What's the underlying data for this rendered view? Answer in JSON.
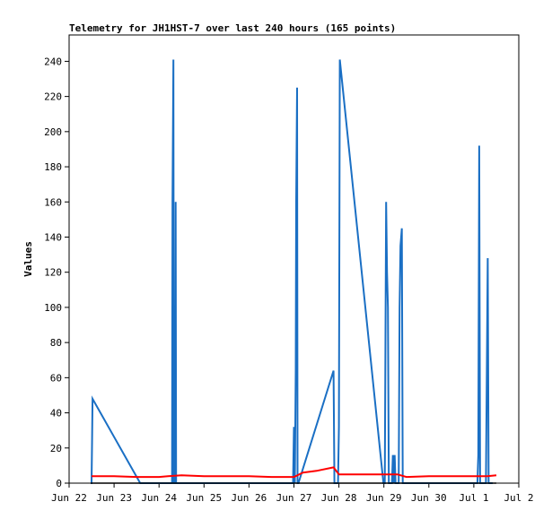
{
  "chart_data": {
    "type": "line",
    "title": "Telemetry for JH1HST-7 over last 240 hours (165 points)",
    "xlabel": "",
    "ylabel": "Values",
    "x_ticks": [
      "Jun 22",
      "Jun 23",
      "Jun 24",
      "Jun 25",
      "Jun 26",
      "Jun 27",
      "Jun 28",
      "Jun 29",
      "Jun 30",
      "Jul 1",
      "Jul 2"
    ],
    "xlim": [
      0,
      10
    ],
    "ylim": [
      0,
      255
    ],
    "y_ticks": [
      0,
      20,
      40,
      60,
      80,
      100,
      120,
      140,
      160,
      180,
      200,
      220,
      240
    ],
    "grid": false,
    "series": [
      {
        "color": "#1a6fc4",
        "points": [
          [
            0.48,
            0
          ],
          [
            0.5,
            0
          ],
          [
            0.51,
            25
          ],
          [
            0.52,
            48
          ],
          [
            1.58,
            0
          ],
          [
            2.29,
            0
          ],
          [
            2.3,
            160
          ],
          [
            2.32,
            241
          ],
          [
            2.33,
            0
          ],
          [
            2.36,
            0
          ],
          [
            2.37,
            160
          ],
          [
            2.38,
            0
          ],
          [
            4.98,
            0
          ],
          [
            5.0,
            32
          ],
          [
            5.02,
            0
          ],
          [
            5.04,
            64
          ],
          [
            5.05,
            160
          ],
          [
            5.07,
            225
          ],
          [
            5.08,
            0
          ],
          [
            5.1,
            0
          ],
          [
            5.88,
            64
          ],
          [
            5.9,
            0
          ],
          [
            5.98,
            0
          ],
          [
            6.0,
            32
          ],
          [
            6.02,
            241
          ],
          [
            6.99,
            0
          ],
          [
            7.02,
            0
          ],
          [
            7.05,
            160
          ],
          [
            7.07,
            120
          ],
          [
            7.09,
            100
          ],
          [
            7.11,
            0
          ],
          [
            7.18,
            0
          ],
          [
            7.2,
            16
          ],
          [
            7.22,
            0
          ],
          [
            7.24,
            16
          ],
          [
            7.26,
            0
          ],
          [
            7.33,
            0
          ],
          [
            7.35,
            100
          ],
          [
            7.37,
            135
          ],
          [
            7.4,
            145
          ],
          [
            7.42,
            0
          ],
          [
            9.08,
            0
          ],
          [
            9.1,
            16
          ],
          [
            9.12,
            192
          ],
          [
            9.14,
            0
          ],
          [
            9.27,
            0
          ],
          [
            9.29,
            64
          ],
          [
            9.31,
            128
          ],
          [
            9.33,
            0
          ],
          [
            9.42,
            0
          ]
        ]
      },
      {
        "color": "#ff0000",
        "points": [
          [
            0.5,
            4
          ],
          [
            1.0,
            4
          ],
          [
            1.5,
            3.5
          ],
          [
            2.0,
            3.5
          ],
          [
            2.2,
            4
          ],
          [
            2.5,
            4.5
          ],
          [
            3.0,
            4
          ],
          [
            3.5,
            4
          ],
          [
            4.0,
            4
          ],
          [
            4.5,
            3.5
          ],
          [
            5.0,
            3.5
          ],
          [
            5.2,
            6
          ],
          [
            5.5,
            7
          ],
          [
            5.88,
            9
          ],
          [
            6.0,
            5
          ],
          [
            6.5,
            5
          ],
          [
            7.0,
            5
          ],
          [
            7.3,
            5
          ],
          [
            7.5,
            3.5
          ],
          [
            8.0,
            4
          ],
          [
            8.5,
            4
          ],
          [
            9.0,
            4
          ],
          [
            9.3,
            4
          ],
          [
            9.5,
            4.5
          ]
        ]
      },
      {
        "color": "#000000",
        "points": [
          [
            0.48,
            0
          ],
          [
            9.5,
            0
          ]
        ]
      }
    ]
  }
}
